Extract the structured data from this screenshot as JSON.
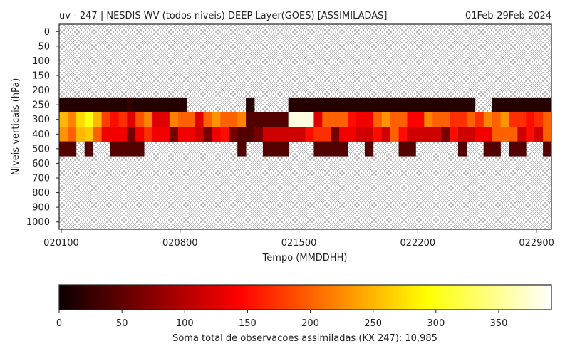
{
  "chart_data": {
    "type": "heatmap",
    "title_left": "uv - 247 | NESDIS WV (todos niveis) DEEP Layer(GOES) [ASSIMILADAS]",
    "title_right": "01Feb-29Feb 2024",
    "xlabel": "Tempo (MMDDHH)",
    "ylabel": "Niveis verticais (hPa)",
    "x_tick_labels": [
      "020100",
      "020800",
      "021500",
      "022200",
      "022900"
    ],
    "x_tick_index": [
      0,
      28,
      56,
      84,
      112
    ],
    "y_levels": [
      0,
      50,
      100,
      150,
      200,
      250,
      300,
      400,
      500,
      600,
      700,
      800,
      900,
      1000
    ],
    "time_steps": 116,
    "colorbar": {
      "label": "Soma total de observacoes assimiladas (KX 247): 10,985",
      "ticks": [
        0,
        50,
        100,
        150,
        200,
        250,
        300,
        350
      ],
      "vmin": 0,
      "vmax": 392
    },
    "rows": {
      "250": [
        15,
        15,
        15,
        15,
        15,
        15,
        15,
        15,
        15,
        15,
        15,
        15,
        15,
        15,
        15,
        15,
        25,
        15,
        15,
        15,
        15,
        15,
        15,
        15,
        15,
        15,
        15,
        15,
        15,
        15,
        null,
        null,
        null,
        null,
        null,
        null,
        null,
        null,
        null,
        null,
        null,
        null,
        null,
        null,
        15,
        15,
        null,
        null,
        null,
        null,
        null,
        null,
        null,
        null,
        15,
        15,
        15,
        15,
        15,
        15,
        15,
        15,
        15,
        15,
        15,
        15,
        15,
        15,
        15,
        15,
        15,
        15,
        15,
        15,
        15,
        15,
        15,
        15,
        15,
        15,
        15,
        15,
        15,
        15,
        15,
        15,
        15,
        15,
        15,
        15,
        15,
        15,
        15,
        15,
        15,
        15,
        15,
        15,
        null,
        null,
        null,
        null,
        15,
        15,
        15,
        15,
        15,
        15,
        15,
        15,
        15,
        15,
        15,
        15,
        15,
        15
      ],
      "300": [
        250,
        250,
        220,
        220,
        270,
        270,
        300,
        300,
        250,
        250,
        180,
        180,
        150,
        150,
        170,
        170,
        120,
        120,
        190,
        190,
        220,
        220,
        120,
        120,
        120,
        120,
        220,
        220,
        200,
        200,
        200,
        200,
        120,
        120,
        200,
        200,
        230,
        230,
        200,
        200,
        200,
        200,
        220,
        220,
        40,
        40,
        40,
        40,
        40,
        40,
        40,
        40,
        40,
        40,
        380,
        380,
        380,
        380,
        380,
        380,
        120,
        120,
        200,
        200,
        200,
        200,
        200,
        200,
        150,
        150,
        130,
        130,
        130,
        130,
        200,
        200,
        230,
        230,
        200,
        200,
        200,
        200,
        140,
        140,
        140,
        140,
        220,
        220,
        200,
        200,
        200,
        200,
        170,
        170,
        170,
        170,
        200,
        200,
        170,
        170,
        220,
        220,
        200,
        200,
        230,
        230,
        170,
        170,
        170,
        170,
        150,
        150,
        170,
        170,
        200,
        200
      ],
      "400": [
        230,
        230,
        200,
        200,
        250,
        250,
        260,
        260,
        200,
        200,
        130,
        130,
        130,
        130,
        130,
        130,
        60,
        60,
        130,
        130,
        170,
        170,
        130,
        130,
        130,
        130,
        60,
        60,
        130,
        130,
        130,
        130,
        110,
        110,
        60,
        60,
        130,
        130,
        150,
        150,
        60,
        60,
        40,
        40,
        40,
        40,
        60,
        60,
        110,
        110,
        110,
        110,
        110,
        110,
        110,
        110,
        110,
        110,
        150,
        150,
        170,
        170,
        170,
        170,
        60,
        60,
        130,
        130,
        130,
        130,
        110,
        110,
        110,
        110,
        150,
        150,
        110,
        110,
        200,
        200,
        150,
        150,
        110,
        110,
        110,
        110,
        110,
        110,
        110,
        110,
        60,
        60,
        150,
        150,
        110,
        110,
        110,
        110,
        130,
        130,
        130,
        130,
        200,
        200,
        200,
        200,
        200,
        200,
        110,
        110,
        150,
        150,
        110,
        110,
        200,
        200
      ],
      "500": [
        40,
        40,
        40,
        40,
        null,
        null,
        40,
        40,
        null,
        null,
        null,
        null,
        40,
        40,
        40,
        40,
        40,
        40,
        40,
        40,
        null,
        null,
        null,
        null,
        null,
        null,
        null,
        null,
        null,
        null,
        null,
        null,
        null,
        null,
        null,
        null,
        null,
        null,
        null,
        null,
        null,
        null,
        40,
        40,
        null,
        null,
        null,
        null,
        40,
        40,
        40,
        40,
        40,
        40,
        null,
        null,
        null,
        null,
        null,
        null,
        40,
        40,
        40,
        40,
        40,
        40,
        40,
        40,
        null,
        null,
        null,
        null,
        40,
        40,
        null,
        null,
        null,
        null,
        null,
        null,
        40,
        40,
        40,
        40,
        null,
        null,
        null,
        null,
        null,
        null,
        null,
        null,
        null,
        null,
        40,
        40,
        null,
        null,
        null,
        null,
        40,
        40,
        40,
        40,
        null,
        null,
        40,
        40,
        40,
        40,
        null,
        null,
        null,
        null,
        40,
        40
      ]
    }
  }
}
